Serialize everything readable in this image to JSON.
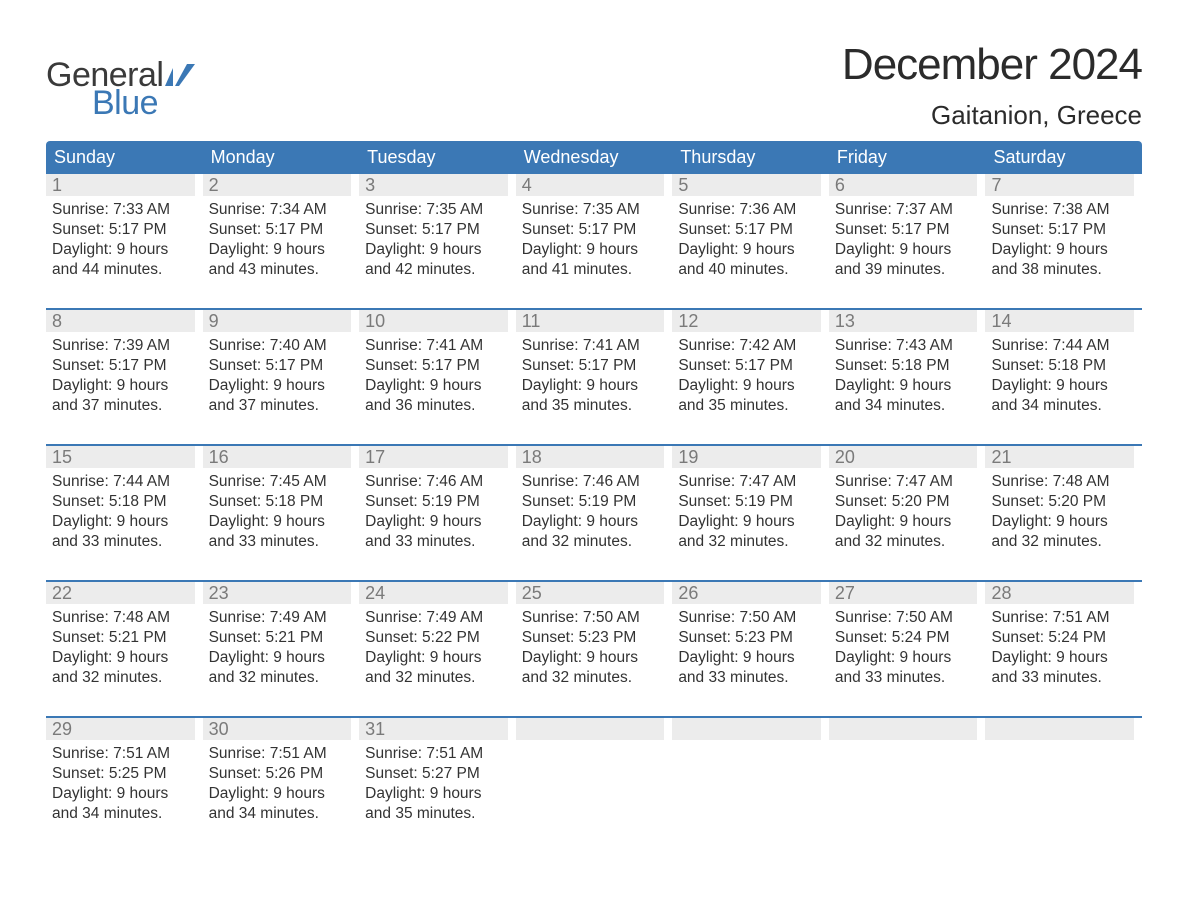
{
  "brand": {
    "part1": "General",
    "part2": "Blue",
    "color_primary": "#3b78b5",
    "color_text": "#3a3a3a"
  },
  "title": "December 2024",
  "location": "Gaitanion, Greece",
  "colors": {
    "header_bg": "#3b78b5",
    "header_text": "#ffffff",
    "daynum_bg": "#ececec",
    "daynum_text": "#7a7a7a",
    "body_text": "#333333",
    "week_border": "#3b78b5",
    "page_bg": "#ffffff"
  },
  "font": {
    "family": "Arial",
    "title_size_pt": 33,
    "location_size_pt": 20,
    "dayhead_size_pt": 14,
    "daynum_size_pt": 14,
    "body_size_pt": 12
  },
  "day_headers": [
    "Sunday",
    "Monday",
    "Tuesday",
    "Wednesday",
    "Thursday",
    "Friday",
    "Saturday"
  ],
  "weeks": [
    [
      {
        "n": "1",
        "sunrise": "7:33 AM",
        "sunset": "5:17 PM",
        "day_l1": "Daylight: 9 hours",
        "day_l2": "and 44 minutes."
      },
      {
        "n": "2",
        "sunrise": "7:34 AM",
        "sunset": "5:17 PM",
        "day_l1": "Daylight: 9 hours",
        "day_l2": "and 43 minutes."
      },
      {
        "n": "3",
        "sunrise": "7:35 AM",
        "sunset": "5:17 PM",
        "day_l1": "Daylight: 9 hours",
        "day_l2": "and 42 minutes."
      },
      {
        "n": "4",
        "sunrise": "7:35 AM",
        "sunset": "5:17 PM",
        "day_l1": "Daylight: 9 hours",
        "day_l2": "and 41 minutes."
      },
      {
        "n": "5",
        "sunrise": "7:36 AM",
        "sunset": "5:17 PM",
        "day_l1": "Daylight: 9 hours",
        "day_l2": "and 40 minutes."
      },
      {
        "n": "6",
        "sunrise": "7:37 AM",
        "sunset": "5:17 PM",
        "day_l1": "Daylight: 9 hours",
        "day_l2": "and 39 minutes."
      },
      {
        "n": "7",
        "sunrise": "7:38 AM",
        "sunset": "5:17 PM",
        "day_l1": "Daylight: 9 hours",
        "day_l2": "and 38 minutes."
      }
    ],
    [
      {
        "n": "8",
        "sunrise": "7:39 AM",
        "sunset": "5:17 PM",
        "day_l1": "Daylight: 9 hours",
        "day_l2": "and 37 minutes."
      },
      {
        "n": "9",
        "sunrise": "7:40 AM",
        "sunset": "5:17 PM",
        "day_l1": "Daylight: 9 hours",
        "day_l2": "and 37 minutes."
      },
      {
        "n": "10",
        "sunrise": "7:41 AM",
        "sunset": "5:17 PM",
        "day_l1": "Daylight: 9 hours",
        "day_l2": "and 36 minutes."
      },
      {
        "n": "11",
        "sunrise": "7:41 AM",
        "sunset": "5:17 PM",
        "day_l1": "Daylight: 9 hours",
        "day_l2": "and 35 minutes."
      },
      {
        "n": "12",
        "sunrise": "7:42 AM",
        "sunset": "5:17 PM",
        "day_l1": "Daylight: 9 hours",
        "day_l2": "and 35 minutes."
      },
      {
        "n": "13",
        "sunrise": "7:43 AM",
        "sunset": "5:18 PM",
        "day_l1": "Daylight: 9 hours",
        "day_l2": "and 34 minutes."
      },
      {
        "n": "14",
        "sunrise": "7:44 AM",
        "sunset": "5:18 PM",
        "day_l1": "Daylight: 9 hours",
        "day_l2": "and 34 minutes."
      }
    ],
    [
      {
        "n": "15",
        "sunrise": "7:44 AM",
        "sunset": "5:18 PM",
        "day_l1": "Daylight: 9 hours",
        "day_l2": "and 33 minutes."
      },
      {
        "n": "16",
        "sunrise": "7:45 AM",
        "sunset": "5:18 PM",
        "day_l1": "Daylight: 9 hours",
        "day_l2": "and 33 minutes."
      },
      {
        "n": "17",
        "sunrise": "7:46 AM",
        "sunset": "5:19 PM",
        "day_l1": "Daylight: 9 hours",
        "day_l2": "and 33 minutes."
      },
      {
        "n": "18",
        "sunrise": "7:46 AM",
        "sunset": "5:19 PM",
        "day_l1": "Daylight: 9 hours",
        "day_l2": "and 32 minutes."
      },
      {
        "n": "19",
        "sunrise": "7:47 AM",
        "sunset": "5:19 PM",
        "day_l1": "Daylight: 9 hours",
        "day_l2": "and 32 minutes."
      },
      {
        "n": "20",
        "sunrise": "7:47 AM",
        "sunset": "5:20 PM",
        "day_l1": "Daylight: 9 hours",
        "day_l2": "and 32 minutes."
      },
      {
        "n": "21",
        "sunrise": "7:48 AM",
        "sunset": "5:20 PM",
        "day_l1": "Daylight: 9 hours",
        "day_l2": "and 32 minutes."
      }
    ],
    [
      {
        "n": "22",
        "sunrise": "7:48 AM",
        "sunset": "5:21 PM",
        "day_l1": "Daylight: 9 hours",
        "day_l2": "and 32 minutes."
      },
      {
        "n": "23",
        "sunrise": "7:49 AM",
        "sunset": "5:21 PM",
        "day_l1": "Daylight: 9 hours",
        "day_l2": "and 32 minutes."
      },
      {
        "n": "24",
        "sunrise": "7:49 AM",
        "sunset": "5:22 PM",
        "day_l1": "Daylight: 9 hours",
        "day_l2": "and 32 minutes."
      },
      {
        "n": "25",
        "sunrise": "7:50 AM",
        "sunset": "5:23 PM",
        "day_l1": "Daylight: 9 hours",
        "day_l2": "and 32 minutes."
      },
      {
        "n": "26",
        "sunrise": "7:50 AM",
        "sunset": "5:23 PM",
        "day_l1": "Daylight: 9 hours",
        "day_l2": "and 33 minutes."
      },
      {
        "n": "27",
        "sunrise": "7:50 AM",
        "sunset": "5:24 PM",
        "day_l1": "Daylight: 9 hours",
        "day_l2": "and 33 minutes."
      },
      {
        "n": "28",
        "sunrise": "7:51 AM",
        "sunset": "5:24 PM",
        "day_l1": "Daylight: 9 hours",
        "day_l2": "and 33 minutes."
      }
    ],
    [
      {
        "n": "29",
        "sunrise": "7:51 AM",
        "sunset": "5:25 PM",
        "day_l1": "Daylight: 9 hours",
        "day_l2": "and 34 minutes."
      },
      {
        "n": "30",
        "sunrise": "7:51 AM",
        "sunset": "5:26 PM",
        "day_l1": "Daylight: 9 hours",
        "day_l2": "and 34 minutes."
      },
      {
        "n": "31",
        "sunrise": "7:51 AM",
        "sunset": "5:27 PM",
        "day_l1": "Daylight: 9 hours",
        "day_l2": "and 35 minutes."
      },
      null,
      null,
      null,
      null
    ]
  ],
  "labels": {
    "sunrise_prefix": "Sunrise: ",
    "sunset_prefix": "Sunset: "
  }
}
